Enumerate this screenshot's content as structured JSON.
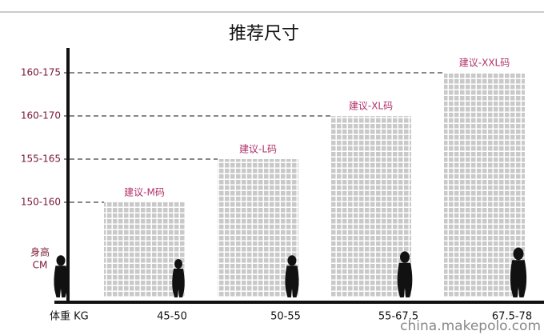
{
  "title": "推荐尺寸",
  "y_axis_label": [
    "身高",
    "CM"
  ],
  "x_axis_label": "体重 KG",
  "bars": [
    {
      "label": "建议-M码",
      "weight": "45-50",
      "height": "150-160"
    },
    {
      "label": "建议-L码",
      "weight": "50-55",
      "height": "155-165"
    },
    {
      "label": "建议-XL码",
      "weight": "55-67.5",
      "height": "160-170"
    },
    {
      "label": "建议-XXL码",
      "weight": "67.5-78",
      "height": "160-175"
    }
  ],
  "watermark": "china.makepolo.com"
}
